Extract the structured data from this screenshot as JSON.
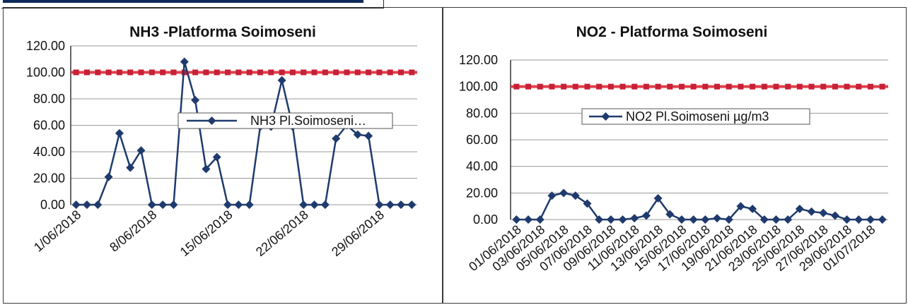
{
  "chart_data": [
    {
      "type": "line",
      "title": "NH3 -Platforma Soimoseni",
      "ylim": [
        0,
        120
      ],
      "y_ticks": [
        "0.00",
        "20.00",
        "40.00",
        "60.00",
        "80.00",
        "100.00",
        "120.00"
      ],
      "x_tick_labels": [
        "1/06/2018",
        "8/06/2018",
        "15/06/2018",
        "22/06/2018",
        "29/06/2018"
      ],
      "grid": true,
      "legend": "center-right",
      "limit_value": 100,
      "series": [
        {
          "name": "NH3 Pl.Soimoseni…",
          "color": "#1f3a6d",
          "x": [
            "1/06/2018",
            "2/06/2018",
            "3/06/2018",
            "4/06/2018",
            "5/06/2018",
            "6/06/2018",
            "7/06/2018",
            "8/06/2018",
            "9/06/2018",
            "10/06/2018",
            "11/06/2018",
            "12/06/2018",
            "13/06/2018",
            "14/06/2018",
            "15/06/2018",
            "16/06/2018",
            "17/06/2018",
            "18/06/2018",
            "19/06/2018",
            "20/06/2018",
            "21/06/2018",
            "22/06/2018",
            "23/06/2018",
            "24/06/2018",
            "25/06/2018",
            "26/06/2018",
            "27/06/2018",
            "28/06/2018",
            "29/06/2018",
            "30/06/2018",
            "1/07/2018",
            "2/07/2018"
          ],
          "values": [
            0,
            0,
            0,
            21,
            54,
            28,
            41,
            0,
            0,
            0,
            108,
            79,
            27,
            36,
            0,
            0,
            0,
            59,
            59,
            94,
            59,
            0,
            0,
            0,
            50,
            60,
            53,
            52,
            0,
            0,
            0,
            0
          ]
        }
      ]
    },
    {
      "type": "line",
      "title": "NO2 - Platforma Soimoseni",
      "ylim": [
        0,
        120
      ],
      "y_ticks": [
        "0.00",
        "20.00",
        "40.00",
        "60.00",
        "80.00",
        "100.00",
        "120.00"
      ],
      "x_tick_labels": [
        "01/06/2018",
        "03/06/2018",
        "05/06/2018",
        "07/06/2018",
        "09/06/2018",
        "11/06/2018",
        "13/06/2018",
        "15/06/2018",
        "17/06/2018",
        "19/06/2018",
        "21/06/2018",
        "23/06/2018",
        "25/06/2018",
        "27/06/2018",
        "29/06/2018",
        "01/07/2018"
      ],
      "grid": true,
      "legend": "center",
      "limit_value": 100,
      "series": [
        {
          "name": "NO2 Pl.Soimoseni µg/m3",
          "color": "#1f3a6d",
          "x": [
            "01/06/2018",
            "02/06/2018",
            "03/06/2018",
            "04/06/2018",
            "05/06/2018",
            "06/06/2018",
            "07/06/2018",
            "08/06/2018",
            "09/06/2018",
            "10/06/2018",
            "11/06/2018",
            "12/06/2018",
            "13/06/2018",
            "14/06/2018",
            "15/06/2018",
            "16/06/2018",
            "17/06/2018",
            "18/06/2018",
            "19/06/2018",
            "20/06/2018",
            "21/06/2018",
            "22/06/2018",
            "23/06/2018",
            "24/06/2018",
            "25/06/2018",
            "26/06/2018",
            "27/06/2018",
            "28/06/2018",
            "29/06/2018",
            "30/06/2018",
            "01/07/2018",
            "02/07/2018"
          ],
          "values": [
            0,
            0,
            0,
            18,
            20,
            18,
            12,
            0,
            0,
            0,
            1,
            3,
            16,
            4,
            0,
            0,
            0,
            1,
            0,
            10,
            8,
            0,
            0,
            0,
            8,
            6,
            5,
            3,
            0,
            0,
            0,
            0
          ]
        }
      ]
    }
  ],
  "colors": {
    "limit_line": "#e0404f",
    "series": "#1f3a6d",
    "grid": "#9a9a9a"
  }
}
